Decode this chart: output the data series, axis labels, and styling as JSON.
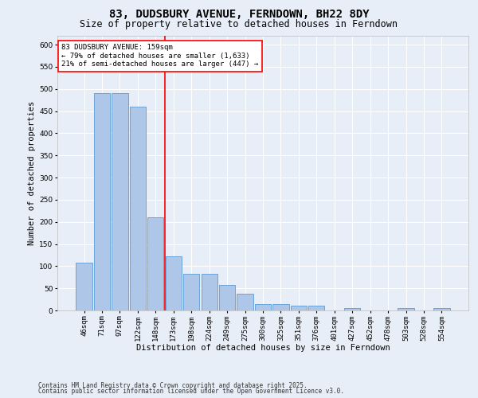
{
  "title": "83, DUDSBURY AVENUE, FERNDOWN, BH22 8DY",
  "subtitle": "Size of property relative to detached houses in Ferndown",
  "xlabel": "Distribution of detached houses by size in Ferndown",
  "ylabel": "Number of detached properties",
  "footnote1": "Contains HM Land Registry data © Crown copyright and database right 2025.",
  "footnote2": "Contains public sector information licensed under the Open Government Licence v3.0.",
  "categories": [
    "46sqm",
    "71sqm",
    "97sqm",
    "122sqm",
    "148sqm",
    "173sqm",
    "198sqm",
    "224sqm",
    "249sqm",
    "275sqm",
    "300sqm",
    "325sqm",
    "351sqm",
    "376sqm",
    "401sqm",
    "427sqm",
    "452sqm",
    "478sqm",
    "503sqm",
    "528sqm",
    "554sqm"
  ],
  "values": [
    107,
    490,
    490,
    460,
    210,
    122,
    83,
    83,
    58,
    38,
    15,
    15,
    11,
    11,
    0,
    5,
    0,
    0,
    5,
    0,
    5
  ],
  "bar_color": "#aec6e8",
  "bar_edge_color": "#5b9bd5",
  "vline_x": 4.5,
  "vline_color": "red",
  "annotation_title": "83 DUDSBURY AVENUE: 159sqm",
  "annotation_line1": "← 79% of detached houses are smaller (1,633)",
  "annotation_line2": "21% of semi-detached houses are larger (447) →",
  "annotation_box_color": "red",
  "annotation_text_color": "black",
  "annotation_bg_color": "white",
  "ylim": [
    0,
    620
  ],
  "yticks": [
    0,
    50,
    100,
    150,
    200,
    250,
    300,
    350,
    400,
    450,
    500,
    550,
    600
  ],
  "background_color": "#e8eef7",
  "grid_color": "white",
  "title_fontsize": 10,
  "subtitle_fontsize": 8.5,
  "axis_label_fontsize": 7.5,
  "tick_fontsize": 6.5,
  "annotation_fontsize": 6.5,
  "footnote_fontsize": 5.5
}
